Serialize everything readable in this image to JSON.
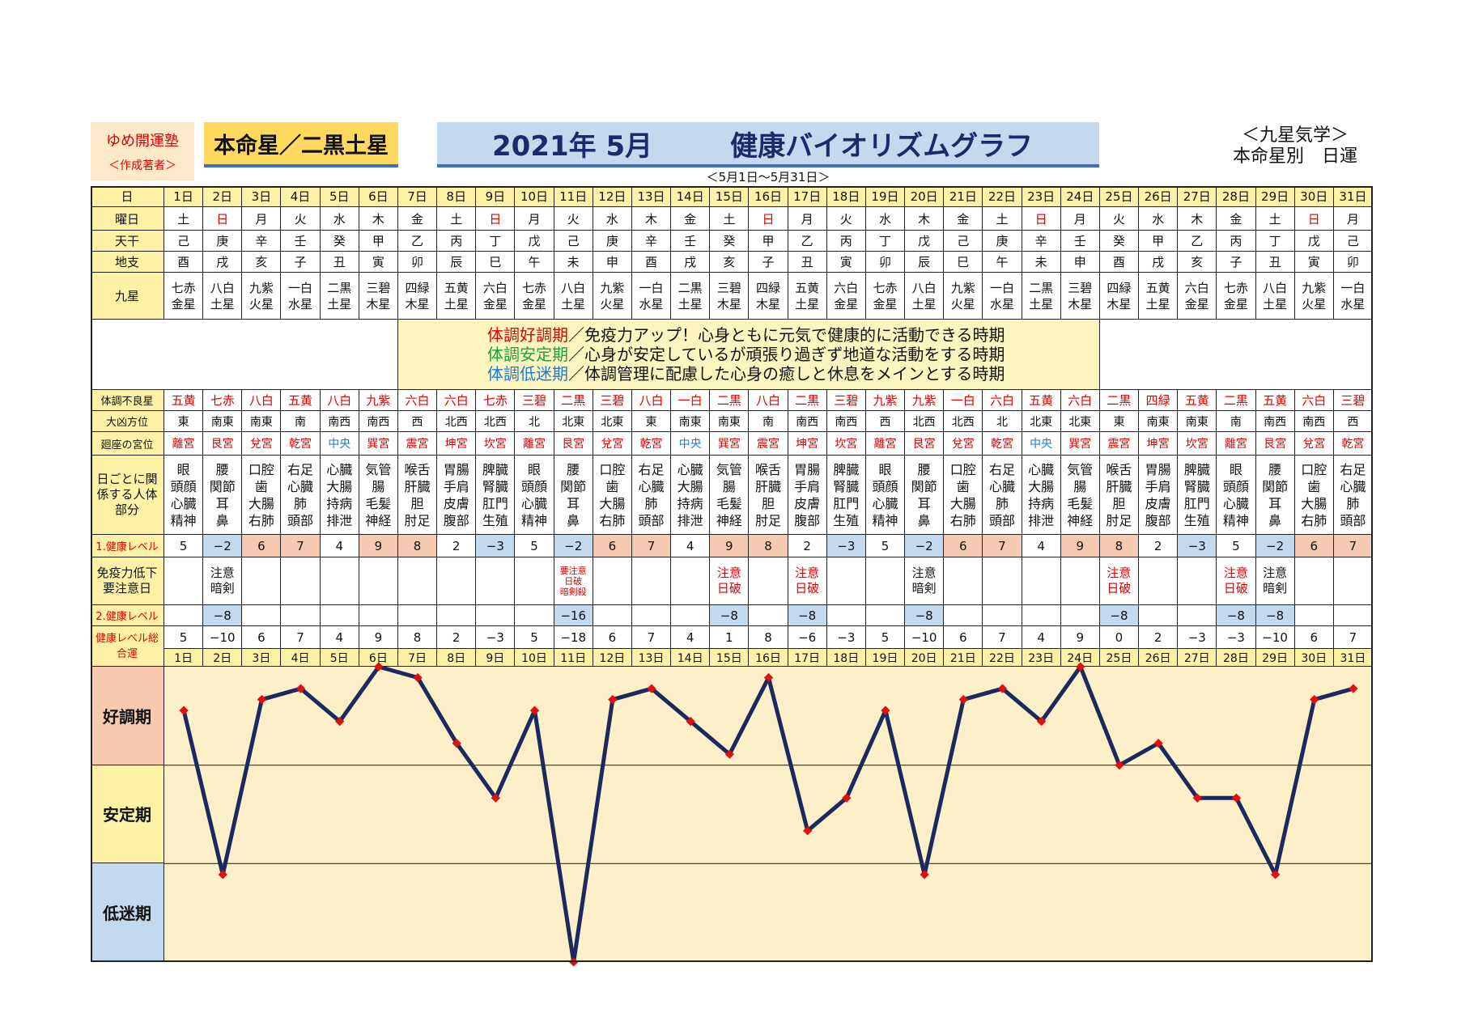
{
  "header": {
    "org": "ゆめ開運塾",
    "org_sub": "＜作成著者＞",
    "honmei": "本命星／二黒土星",
    "title_month": "2021年 5月",
    "title_main": "健康バイオリズムグラフ",
    "right_line1": "＜九星気学＞",
    "right_line2": "本命星別　日運",
    "range": "＜5月1日～5月31日＞"
  },
  "row_labels": {
    "day": "日",
    "weekday": "曜日",
    "tenkan": "天干",
    "chishi": "地支",
    "kyusei": "九星",
    "bad_star": "体調不良星",
    "direction": "大凶方位",
    "palace": "廻座の宮位",
    "body": "日ごとに関係する人体部分",
    "level1": "1.健康レベル",
    "caution": "免疫力低下要注意日",
    "level2": "2.健康レベル",
    "total": "健康レベル総合運",
    "zone_good": "好調期",
    "zone_stable": "安定期",
    "zone_low": "低迷期"
  },
  "legend": [
    {
      "term": "体調好調期",
      "text": "／免疫力アップ！心身ともに元気で健康的に活動できる時期",
      "color": "#e00000"
    },
    {
      "term": "体調安定期",
      "text": "／心身が安定しているが頑張り過ぎず地道な活動をする時期",
      "color": "#15a33a"
    },
    {
      "term": "体調低迷期",
      "text": "／体調管理に配慮した心身の癒しと休息をメインとする時期",
      "color": "#1e7ad6"
    }
  ],
  "days": [
    "1日",
    "2日",
    "3日",
    "4日",
    "5日",
    "6日",
    "7日",
    "8日",
    "9日",
    "10日",
    "11日",
    "12日",
    "13日",
    "14日",
    "15日",
    "16日",
    "17日",
    "18日",
    "19日",
    "20日",
    "21日",
    "22日",
    "23日",
    "24日",
    "25日",
    "26日",
    "27日",
    "28日",
    "29日",
    "30日",
    "31日"
  ],
  "weekdays": [
    "土",
    "日",
    "月",
    "火",
    "水",
    "木",
    "金",
    "土",
    "日",
    "月",
    "火",
    "水",
    "木",
    "金",
    "土",
    "日",
    "月",
    "火",
    "水",
    "木",
    "金",
    "土",
    "日",
    "月",
    "火",
    "水",
    "木",
    "金",
    "土",
    "日",
    "月"
  ],
  "tenkan": [
    "己",
    "庚",
    "辛",
    "壬",
    "癸",
    "甲",
    "乙",
    "丙",
    "丁",
    "戊",
    "己",
    "庚",
    "辛",
    "壬",
    "癸",
    "甲",
    "乙",
    "丙",
    "丁",
    "戊",
    "己",
    "庚",
    "辛",
    "壬",
    "癸",
    "甲",
    "乙",
    "丙",
    "丁",
    "戊",
    "己"
  ],
  "chishi": [
    "酉",
    "戌",
    "亥",
    "子",
    "丑",
    "寅",
    "卯",
    "辰",
    "巳",
    "午",
    "未",
    "申",
    "酉",
    "戌",
    "亥",
    "子",
    "丑",
    "寅",
    "卯",
    "辰",
    "巳",
    "午",
    "未",
    "申",
    "酉",
    "戌",
    "亥",
    "子",
    "丑",
    "寅",
    "卯"
  ],
  "kyusei": [
    [
      "七赤",
      "金星"
    ],
    [
      "八白",
      "土星"
    ],
    [
      "九紫",
      "火星"
    ],
    [
      "一白",
      "水星"
    ],
    [
      "二黒",
      "土星"
    ],
    [
      "三碧",
      "木星"
    ],
    [
      "四緑",
      "木星"
    ],
    [
      "五黄",
      "土星"
    ],
    [
      "六白",
      "金星"
    ],
    [
      "七赤",
      "金星"
    ],
    [
      "八白",
      "土星"
    ],
    [
      "九紫",
      "火星"
    ],
    [
      "一白",
      "水星"
    ],
    [
      "二黒",
      "土星"
    ],
    [
      "三碧",
      "木星"
    ],
    [
      "四緑",
      "木星"
    ],
    [
      "五黄",
      "土星"
    ],
    [
      "六白",
      "金星"
    ],
    [
      "七赤",
      "金星"
    ],
    [
      "八白",
      "土星"
    ],
    [
      "九紫",
      "火星"
    ],
    [
      "一白",
      "水星"
    ],
    [
      "二黒",
      "土星"
    ],
    [
      "三碧",
      "木星"
    ],
    [
      "四緑",
      "木星"
    ],
    [
      "五黄",
      "土星"
    ],
    [
      "六白",
      "金星"
    ],
    [
      "七赤",
      "金星"
    ],
    [
      "八白",
      "土星"
    ],
    [
      "九紫",
      "火星"
    ],
    [
      "一白",
      "水星"
    ]
  ],
  "bad_star": [
    "五黄",
    "七赤",
    "八白",
    "五黄",
    "八白",
    "九紫",
    "六白",
    "六白",
    "七赤",
    "三碧",
    "二黒",
    "三碧",
    "八白",
    "一白",
    "二黒",
    "八白",
    "二黒",
    "三碧",
    "九紫",
    "九紫",
    "一白",
    "六白",
    "五黄",
    "六白",
    "二黒",
    "四緑",
    "五黄",
    "二黒",
    "五黄",
    "六白",
    "三碧"
  ],
  "direction": [
    "東",
    "南東",
    "南東",
    "南",
    "南西",
    "南西",
    "西",
    "北西",
    "北西",
    "北",
    "北東",
    "北東",
    "東",
    "南東",
    "南東",
    "南",
    "南西",
    "南西",
    "西",
    "北西",
    "北西",
    "北",
    "北東",
    "北東",
    "東",
    "南東",
    "南東",
    "南",
    "南西",
    "南西",
    "西"
  ],
  "palace": [
    "離宮",
    "艮宮",
    "兌宮",
    "乾宮",
    "中央",
    "巽宮",
    "震宮",
    "坤宮",
    "坎宮",
    "離宮",
    "艮宮",
    "兌宮",
    "乾宮",
    "中央",
    "巽宮",
    "震宮",
    "坤宮",
    "坎宮",
    "離宮",
    "艮宮",
    "兌宮",
    "乾宮",
    "中央",
    "巽宮",
    "震宮",
    "坤宮",
    "坎宮",
    "離宮",
    "艮宮",
    "兌宮",
    "乾宮"
  ],
  "body": [
    [
      "眼",
      "頭顔",
      "心臓",
      "精神"
    ],
    [
      "腰",
      "関節",
      "耳",
      "鼻"
    ],
    [
      "口腔",
      "歯",
      "大腸",
      "右肺"
    ],
    [
      "右足",
      "心臓",
      "肺",
      "頭部"
    ],
    [
      "心臓",
      "大腸",
      "持病",
      "排泄"
    ],
    [
      "気管",
      "腸",
      "毛髪",
      "神経"
    ],
    [
      "喉舌",
      "肝臓",
      "胆",
      "肘足"
    ],
    [
      "胃腸",
      "手肩",
      "皮膚",
      "腹部"
    ],
    [
      "脾臓",
      "腎臓",
      "肛門",
      "生殖"
    ],
    [
      "眼",
      "頭顔",
      "心臓",
      "精神"
    ],
    [
      "腰",
      "関節",
      "耳",
      "鼻"
    ],
    [
      "口腔",
      "歯",
      "大腸",
      "右肺"
    ],
    [
      "右足",
      "心臓",
      "肺",
      "頭部"
    ],
    [
      "心臓",
      "大腸",
      "持病",
      "排泄"
    ],
    [
      "気管",
      "腸",
      "毛髪",
      "神経"
    ],
    [
      "喉舌",
      "肝臓",
      "胆",
      "肘足"
    ],
    [
      "胃腸",
      "手肩",
      "皮膚",
      "腹部"
    ],
    [
      "脾臓",
      "腎臓",
      "肛門",
      "生殖"
    ],
    [
      "眼",
      "頭顔",
      "心臓",
      "精神"
    ],
    [
      "腰",
      "関節",
      "耳",
      "鼻"
    ],
    [
      "口腔",
      "歯",
      "大腸",
      "右肺"
    ],
    [
      "右足",
      "心臓",
      "肺",
      "頭部"
    ],
    [
      "心臓",
      "大腸",
      "持病",
      "排泄"
    ],
    [
      "気管",
      "腸",
      "毛髪",
      "神経"
    ],
    [
      "喉舌",
      "肝臓",
      "胆",
      "肘足"
    ],
    [
      "胃腸",
      "手肩",
      "皮膚",
      "腹部"
    ],
    [
      "脾臓",
      "腎臓",
      "肛門",
      "生殖"
    ],
    [
      "眼",
      "頭顔",
      "心臓",
      "精神"
    ],
    [
      "腰",
      "関節",
      "耳",
      "鼻"
    ],
    [
      "口腔",
      "歯",
      "大腸",
      "右肺"
    ],
    [
      "右足",
      "心臓",
      "肺",
      "頭部"
    ]
  ],
  "level1": [
    "5",
    "−2",
    "6",
    "7",
    "4",
    "9",
    "8",
    "2",
    "−3",
    "5",
    "−2",
    "6",
    "7",
    "4",
    "9",
    "8",
    "2",
    "−3",
    "5",
    "−2",
    "6",
    "7",
    "4",
    "9",
    "8",
    "2",
    "−3",
    "5",
    "−2",
    "6",
    "7"
  ],
  "caution": [
    [],
    [
      "注意",
      "暗剣"
    ],
    [],
    [],
    [],
    [],
    [],
    [],
    [],
    [],
    [
      "要注意",
      "日破",
      "暗剣殺"
    ],
    [],
    [],
    [],
    [
      "注意",
      "日破"
    ],
    [],
    [
      "注意",
      "日破"
    ],
    [],
    [],
    [
      "注意",
      "暗剣"
    ],
    [],
    [],
    [],
    [],
    [
      "注意",
      "日破"
    ],
    [],
    [],
    [
      "注意",
      "日破"
    ],
    [
      "注意",
      "暗剣"
    ],
    [],
    []
  ],
  "level2": [
    "",
    "−8",
    "",
    "",
    "",
    "",
    "",
    "",
    "",
    "",
    "−16",
    "",
    "",
    "",
    "−8",
    "",
    "−8",
    "",
    "",
    "−8",
    "",
    "",
    "",
    "",
    "−8",
    "",
    "",
    "−8",
    "−8",
    "",
    ""
  ],
  "total": [
    "5",
    "−10",
    "6",
    "7",
    "4",
    "9",
    "8",
    "2",
    "−3",
    "5",
    "−18",
    "6",
    "7",
    "4",
    "1",
    "8",
    "−6",
    "−3",
    "5",
    "−10",
    "6",
    "7",
    "4",
    "9",
    "0",
    "2",
    "−3",
    "−3",
    "−10",
    "6",
    "7"
  ],
  "colors": {
    "line": "#1b2a5e",
    "marker": "#e01010",
    "plot_bg": "#fdefc8",
    "good_bg": "#f6c9b0",
    "stable_bg": "#fdf1a6",
    "low_bg": "#c3d9ee"
  },
  "chart_data": {
    "type": "line",
    "title": "健康バイオリズムグラフ",
    "categories": [
      "1日",
      "2日",
      "3日",
      "4日",
      "5日",
      "6日",
      "7日",
      "8日",
      "9日",
      "10日",
      "11日",
      "12日",
      "13日",
      "14日",
      "15日",
      "16日",
      "17日",
      "18日",
      "19日",
      "20日",
      "21日",
      "22日",
      "23日",
      "24日",
      "25日",
      "26日",
      "27日",
      "28日",
      "29日",
      "30日",
      "31日"
    ],
    "series": [
      {
        "values": [
          5,
          -10,
          6,
          7,
          4,
          9,
          8,
          2,
          -3,
          5,
          -18,
          6,
          7,
          4,
          1,
          8,
          -6,
          -3,
          5,
          -10,
          6,
          7,
          4,
          9,
          0,
          2,
          -3,
          -3,
          -10,
          6,
          7
        ]
      }
    ],
    "ylim": [
      -18,
      9
    ],
    "zones": [
      "好調期",
      "安定期",
      "低迷期"
    ]
  }
}
